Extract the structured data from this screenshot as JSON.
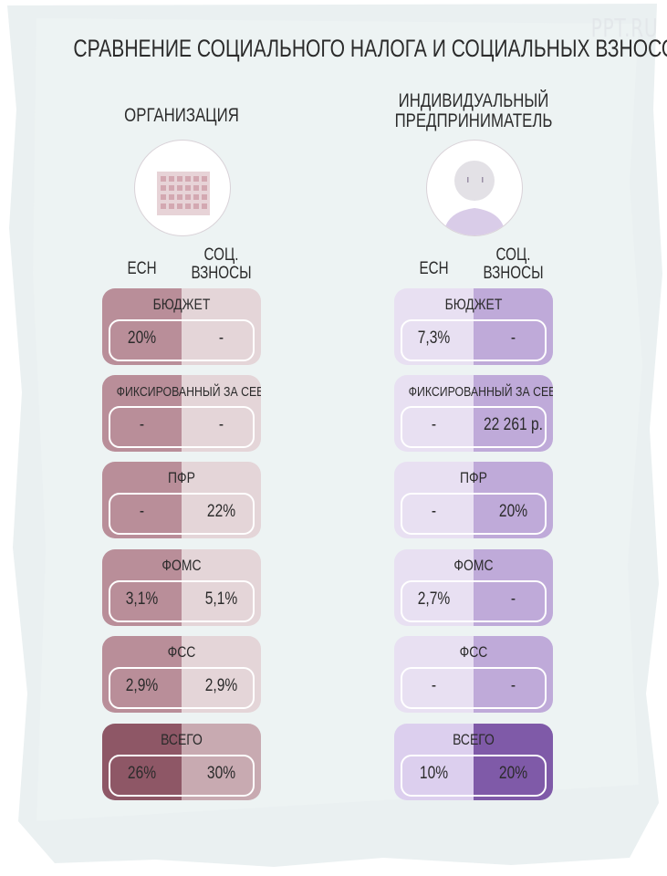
{
  "watermark": "PPT.RU",
  "title": "СРАВНЕНИЕ СОЦИАЛЬНОГО НАЛОГА И СОЦИАЛЬНЫХ ВЗНОСОВ",
  "columns": [
    {
      "heading_lines": [
        "ОРГАНИЗАЦИЯ"
      ],
      "icon": "building-icon",
      "sub_left": [
        "ЕСН"
      ],
      "sub_right": [
        "СОЦ.",
        "ВЗНОСЫ"
      ],
      "colors": {
        "left": "#b98e99",
        "right": "#e4d5d8",
        "total_left": "#8e5766",
        "total_right": "#c8aab1"
      },
      "rows": [
        {
          "label": "БЮДЖЕТ",
          "left": "20%",
          "right": "-"
        },
        {
          "label": "ФИКСИРОВАННЫЙ ЗА СЕБЯ",
          "left": "-",
          "right": "-"
        },
        {
          "label": "ПФР",
          "left": "-",
          "right": "22%"
        },
        {
          "label": "ФОМС",
          "left": "3,1%",
          "right": "5,1%"
        },
        {
          "label": "ФСС",
          "left": "2,9%",
          "right": "2,9%"
        },
        {
          "label": "ВСЕГО",
          "left": "26%",
          "right": "30%",
          "total": true
        }
      ]
    },
    {
      "heading_lines": [
        "ИНДИВИДУАЛЬНЫЙ",
        "ПРЕДПРИНИМАТЕЛЬ"
      ],
      "icon": "person-avatar-icon",
      "sub_left": [
        "ЕСН"
      ],
      "sub_right": [
        "СОЦ.",
        "ВЗНОСЫ"
      ],
      "colors": {
        "left": "#e8e0f2",
        "right": "#bfaad9",
        "total_left": "#dccfee",
        "total_right": "#7f5aa8"
      },
      "rows": [
        {
          "label": "БЮДЖЕТ",
          "left": "7,3%",
          "right": "-"
        },
        {
          "label": "ФИКСИРОВАННЫЙ ЗА СЕБЯ",
          "left": "-",
          "right": "22 261 р."
        },
        {
          "label": "ПФР",
          "left": "-",
          "right": "20%"
        },
        {
          "label": "ФОМС",
          "left": "2,7%",
          "right": "-"
        },
        {
          "label": "ФСС",
          "left": "-",
          "right": "-"
        },
        {
          "label": "ВСЕГО",
          "left": "10%",
          "right": "20%",
          "total": true
        }
      ]
    }
  ]
}
